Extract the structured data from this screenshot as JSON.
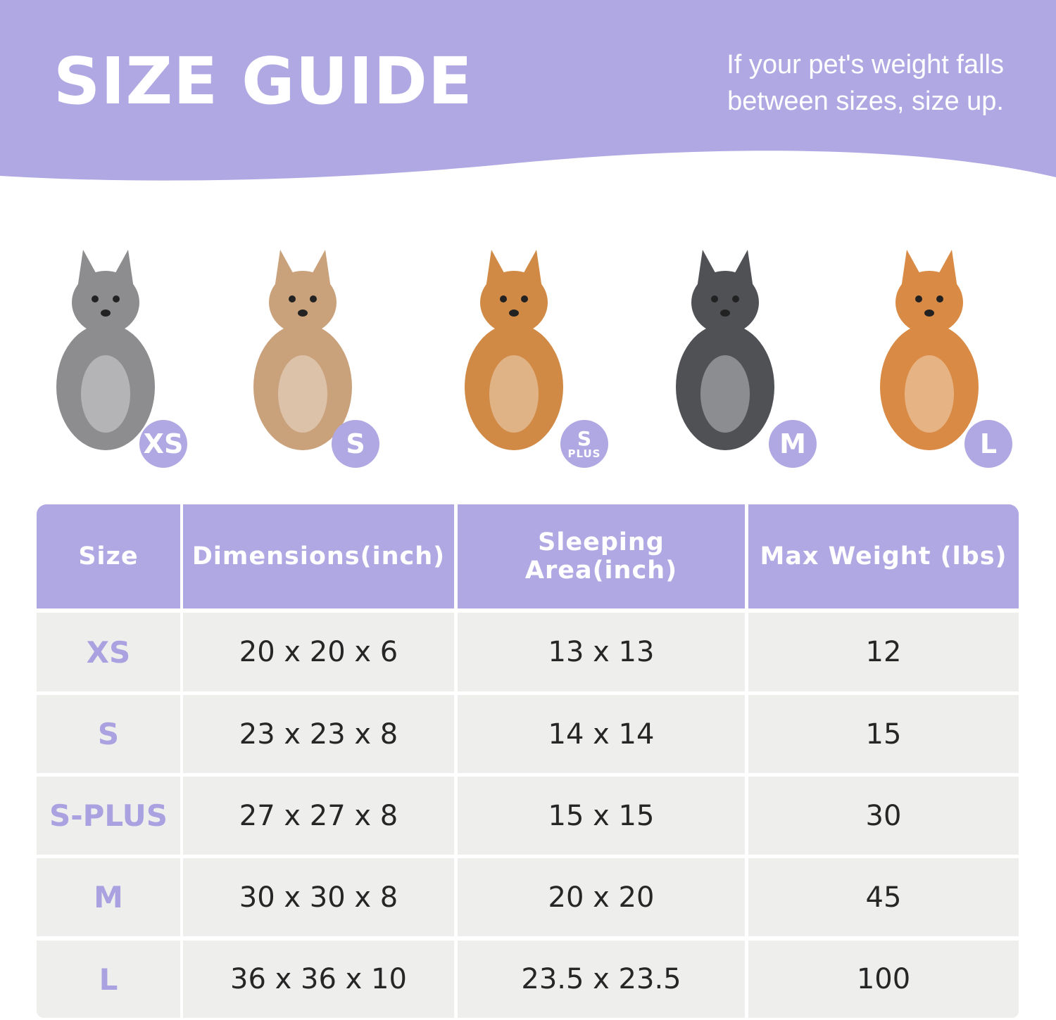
{
  "header": {
    "title": "SIZE GUIDE",
    "note_line1": "If your pet's weight falls",
    "note_line2": "between sizes, size up."
  },
  "colors": {
    "accent": "#b0a8e3",
    "row_bg": "#eeefed",
    "text": "#262626"
  },
  "pets": [
    {
      "animal": "cat",
      "badge": "XS",
      "badge_sub": "",
      "fur": "#8d8d8f"
    },
    {
      "animal": "chihuahua",
      "badge": "S",
      "badge_sub": "",
      "fur": "#c9a27c"
    },
    {
      "animal": "pomeranian",
      "badge": "S",
      "badge_sub": "PLUS",
      "fur": "#d08a45"
    },
    {
      "animal": "french-bulldog",
      "badge": "M",
      "badge_sub": "",
      "fur": "#4f5155"
    },
    {
      "animal": "shiba-inu",
      "badge": "L",
      "badge_sub": "",
      "fur": "#d98a44"
    }
  ],
  "table": {
    "headers": [
      "Size",
      "Dimensions(inch)",
      "Sleeping Area(inch)",
      "Max Weight (lbs)"
    ],
    "rows": [
      [
        "XS",
        "20 x 20 x 6",
        "13 x 13",
        "12"
      ],
      [
        "S",
        "23 x 23 x 8",
        "14 x 14",
        "15"
      ],
      [
        "S-PLUS",
        "27 x 27 x 8",
        "15 x 15",
        "30"
      ],
      [
        "M",
        "30 x 30 x 8",
        "20 x 20",
        "45"
      ],
      [
        "L",
        "36 x 36 x 10",
        "23.5 x 23.5",
        "100"
      ]
    ]
  }
}
